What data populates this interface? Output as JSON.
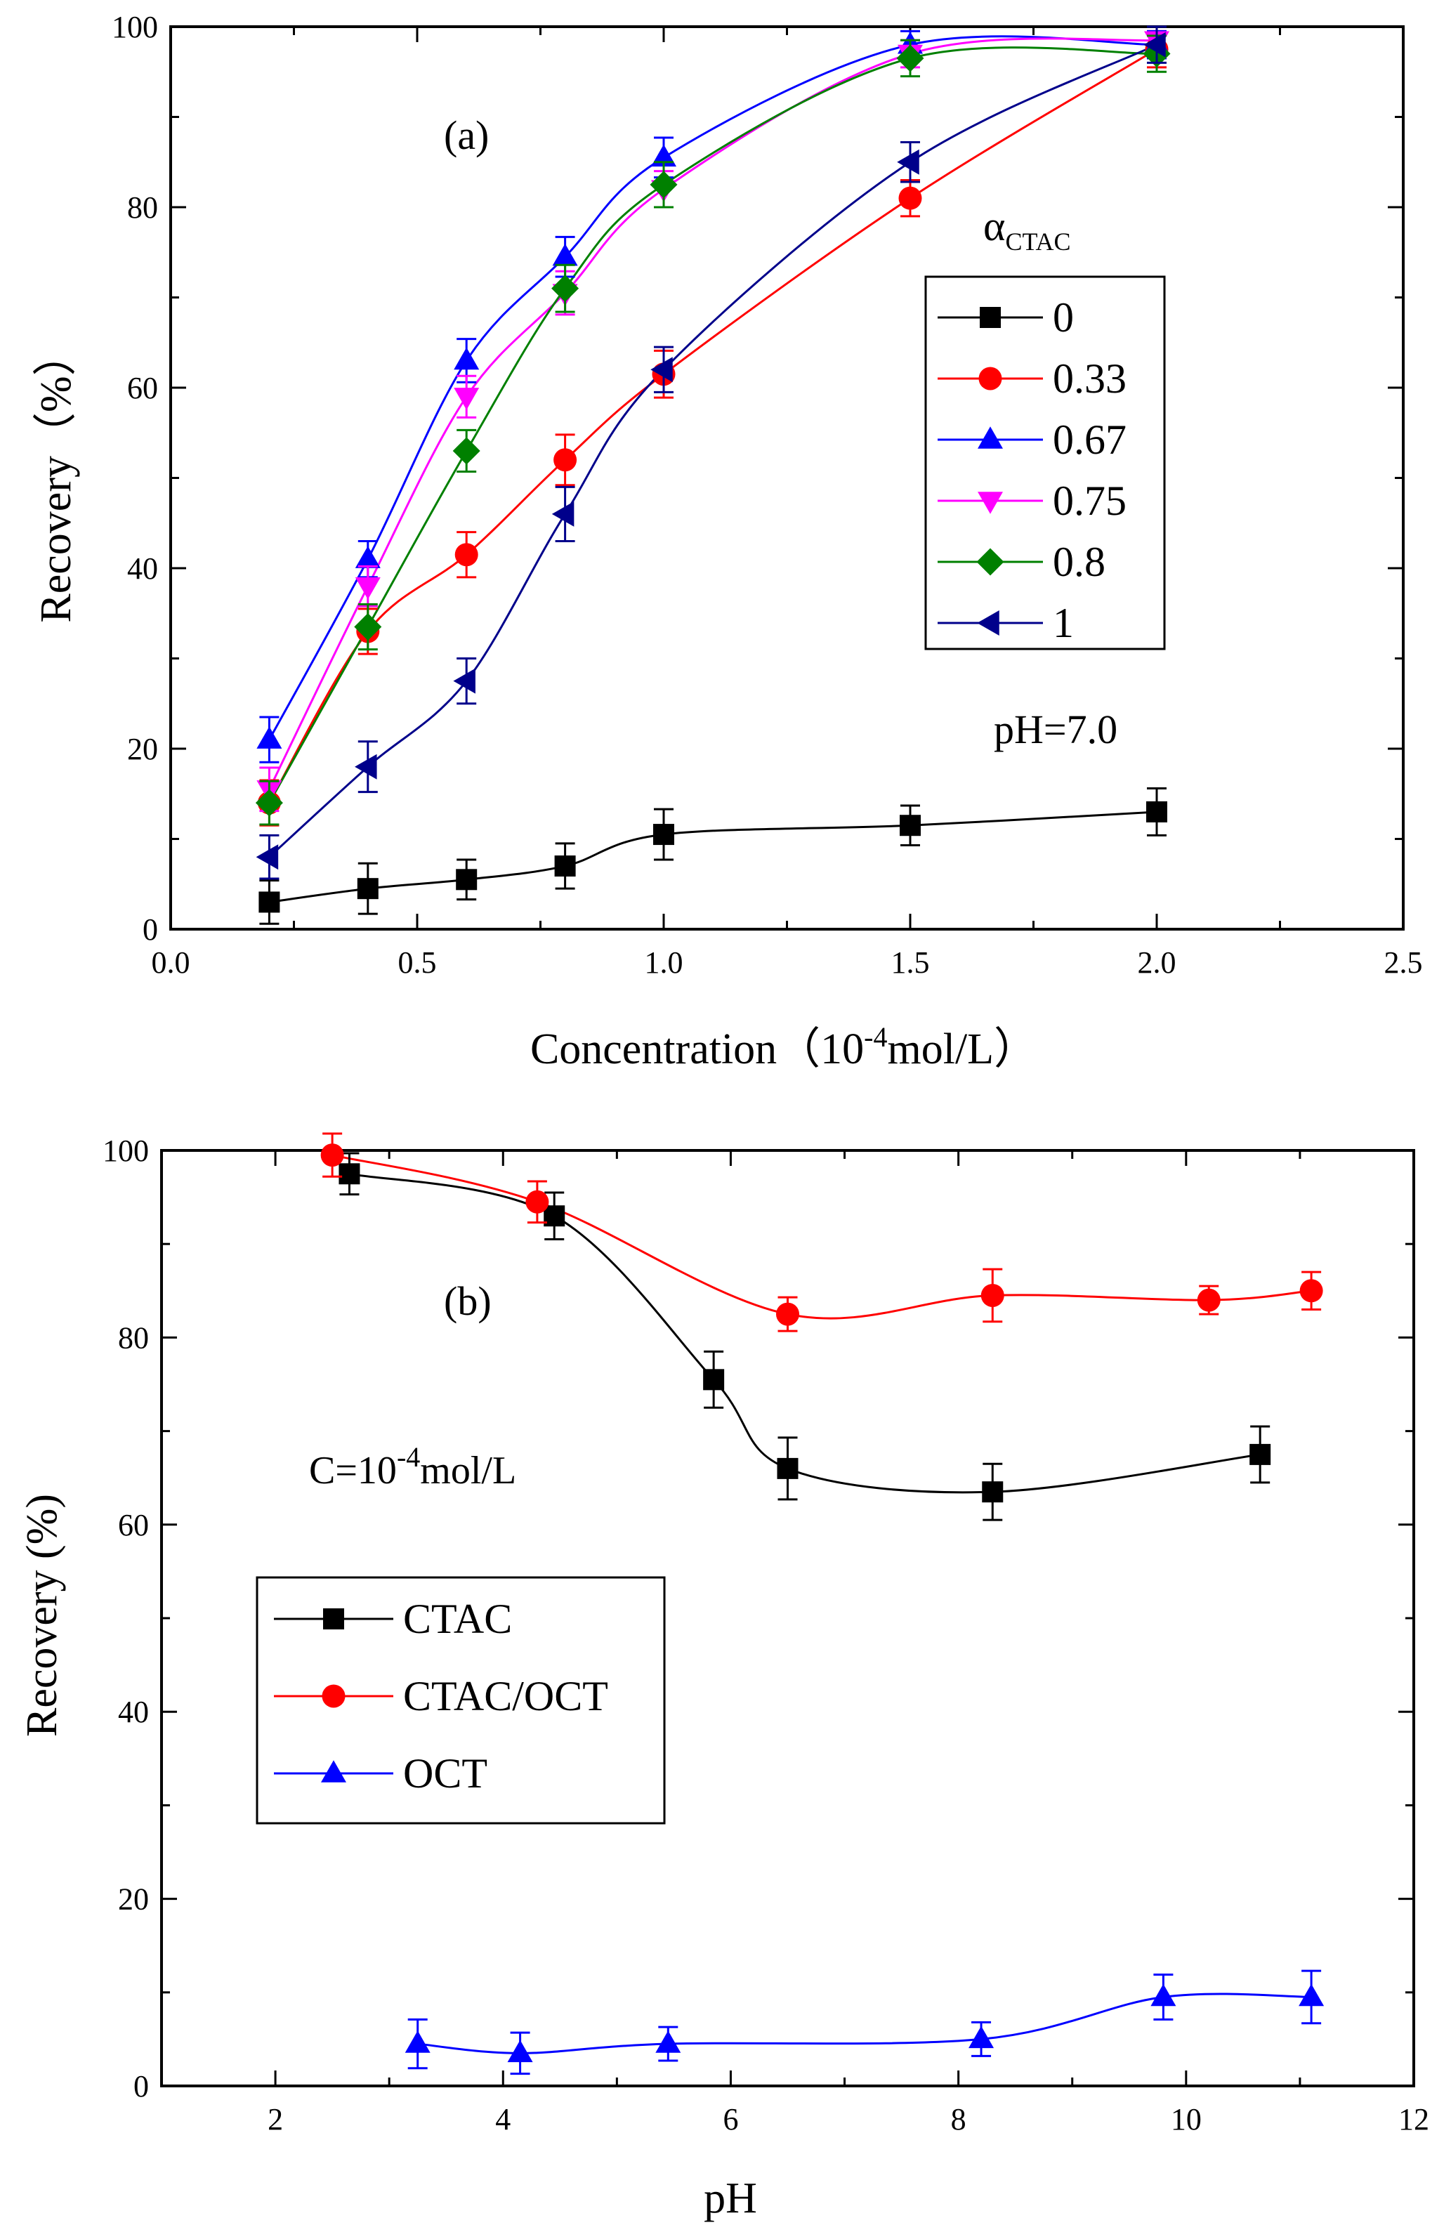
{
  "chart_data": [
    {
      "id": "a",
      "type": "line",
      "title": "",
      "panel_label": "(a)",
      "xlabel": "Concentration（10",
      "xlabel_exp": "-4",
      "xlabel_tail": "mol/L）",
      "ylabel": "Recovery（%）",
      "xlim": [
        0,
        2.5
      ],
      "ylim": [
        0,
        100
      ],
      "xticks": [
        0.0,
        0.5,
        1.0,
        1.5,
        2.0,
        2.5
      ],
      "xtick_labels": [
        "0.0",
        "0.5",
        "1.0",
        "1.5",
        "2.0",
        "2.5"
      ],
      "yticks": [
        0,
        20,
        40,
        60,
        80,
        100
      ],
      "ytick_labels": [
        "0",
        "20",
        "40",
        "60",
        "80",
        "100"
      ],
      "legend_title": "α",
      "legend_title_sub": "CTAC",
      "legend_position": "right",
      "annotation": "pH=7.0",
      "x": [
        0.2,
        0.4,
        0.6,
        0.8,
        1.0,
        1.5,
        2.0
      ],
      "series": [
        {
          "name": "0",
          "color": "#000000",
          "marker": "square",
          "values": [
            3,
            4.5,
            5.5,
            7,
            10.5,
            11.5,
            13
          ],
          "errors": [
            2.4,
            2.8,
            2.2,
            2.5,
            2.8,
            2.2,
            2.6
          ]
        },
        {
          "name": "0.33",
          "color": "#ff0000",
          "marker": "circle",
          "values": [
            14,
            33,
            41.5,
            52,
            61.5,
            81,
            97.5
          ],
          "errors": [
            2.5,
            2.5,
            2.5,
            2.8,
            2.6,
            2.0,
            2.0
          ]
        },
        {
          "name": "0.67",
          "color": "#0000ff",
          "marker": "triangle-up",
          "values": [
            21,
            41,
            63,
            74.5,
            85.5,
            98,
            98
          ],
          "errors": [
            2.5,
            2.0,
            2.4,
            2.2,
            2.2,
            1.5,
            1.5
          ]
        },
        {
          "name": "0.75",
          "color": "#ff00ff",
          "marker": "triangle-down",
          "values": [
            15.5,
            38,
            59,
            70.5,
            82,
            97,
            98.5
          ],
          "errors": [
            2.4,
            2.2,
            2.3,
            2.4,
            2.0,
            1.5,
            1.5
          ]
        },
        {
          "name": "0.8",
          "color": "#008000",
          "marker": "diamond",
          "values": [
            14,
            33.5,
            53,
            71,
            82.5,
            96.5,
            97
          ],
          "errors": [
            2.4,
            2.5,
            2.3,
            2.6,
            2.5,
            2.0,
            2.0
          ]
        },
        {
          "name": "1",
          "color": "#00008b",
          "marker": "triangle-left",
          "values": [
            8,
            18,
            27.5,
            46,
            62,
            85,
            98
          ],
          "errors": [
            2.4,
            2.8,
            2.5,
            3.0,
            2.5,
            2.2,
            2.0
          ]
        }
      ]
    },
    {
      "id": "b",
      "type": "line",
      "title": "",
      "panel_label": "(b)",
      "xlabel": "pH",
      "ylabel": "Recovery (%)",
      "xlim": [
        1,
        12
      ],
      "ylim": [
        0,
        100
      ],
      "xticks": [
        2,
        4,
        6,
        8,
        10,
        12
      ],
      "xtick_labels": [
        "2",
        "4",
        "6",
        "8",
        "10",
        "12"
      ],
      "yticks": [
        0,
        20,
        40,
        60,
        80,
        100
      ],
      "ytick_labels": [
        "0",
        "20",
        "40",
        "60",
        "80",
        "100"
      ],
      "legend_position": "middle-left",
      "annotation": "C=10",
      "annotation_exp": "-4",
      "annotation_tail": "mol/L",
      "series": [
        {
          "name": "CTAC",
          "color": "#000000",
          "marker": "square",
          "x": [
            2.65,
            4.45,
            5.85,
            6.5,
            8.3,
            10.65
          ],
          "values": [
            97.5,
            93,
            75.5,
            66,
            63.5,
            67.5
          ],
          "errors": [
            2.2,
            2.5,
            3.0,
            3.3,
            3.0,
            3.0
          ]
        },
        {
          "name": "CTAC/OCT",
          "color": "#ff0000",
          "marker": "circle",
          "x": [
            2.5,
            4.3,
            6.5,
            8.3,
            10.2,
            11.1
          ],
          "values": [
            99.5,
            94.5,
            82.5,
            84.5,
            84,
            85
          ],
          "errors": [
            2.3,
            2.2,
            1.8,
            2.8,
            1.5,
            2.0
          ]
        },
        {
          "name": "OCT",
          "color": "#0000ff",
          "marker": "triangle-up",
          "x": [
            3.25,
            4.15,
            5.45,
            8.2,
            9.8,
            11.1
          ],
          "values": [
            4.5,
            3.5,
            4.5,
            5,
            9.5,
            9.5
          ],
          "errors": [
            2.6,
            2.2,
            1.8,
            1.8,
            2.4,
            2.8
          ]
        }
      ]
    }
  ]
}
